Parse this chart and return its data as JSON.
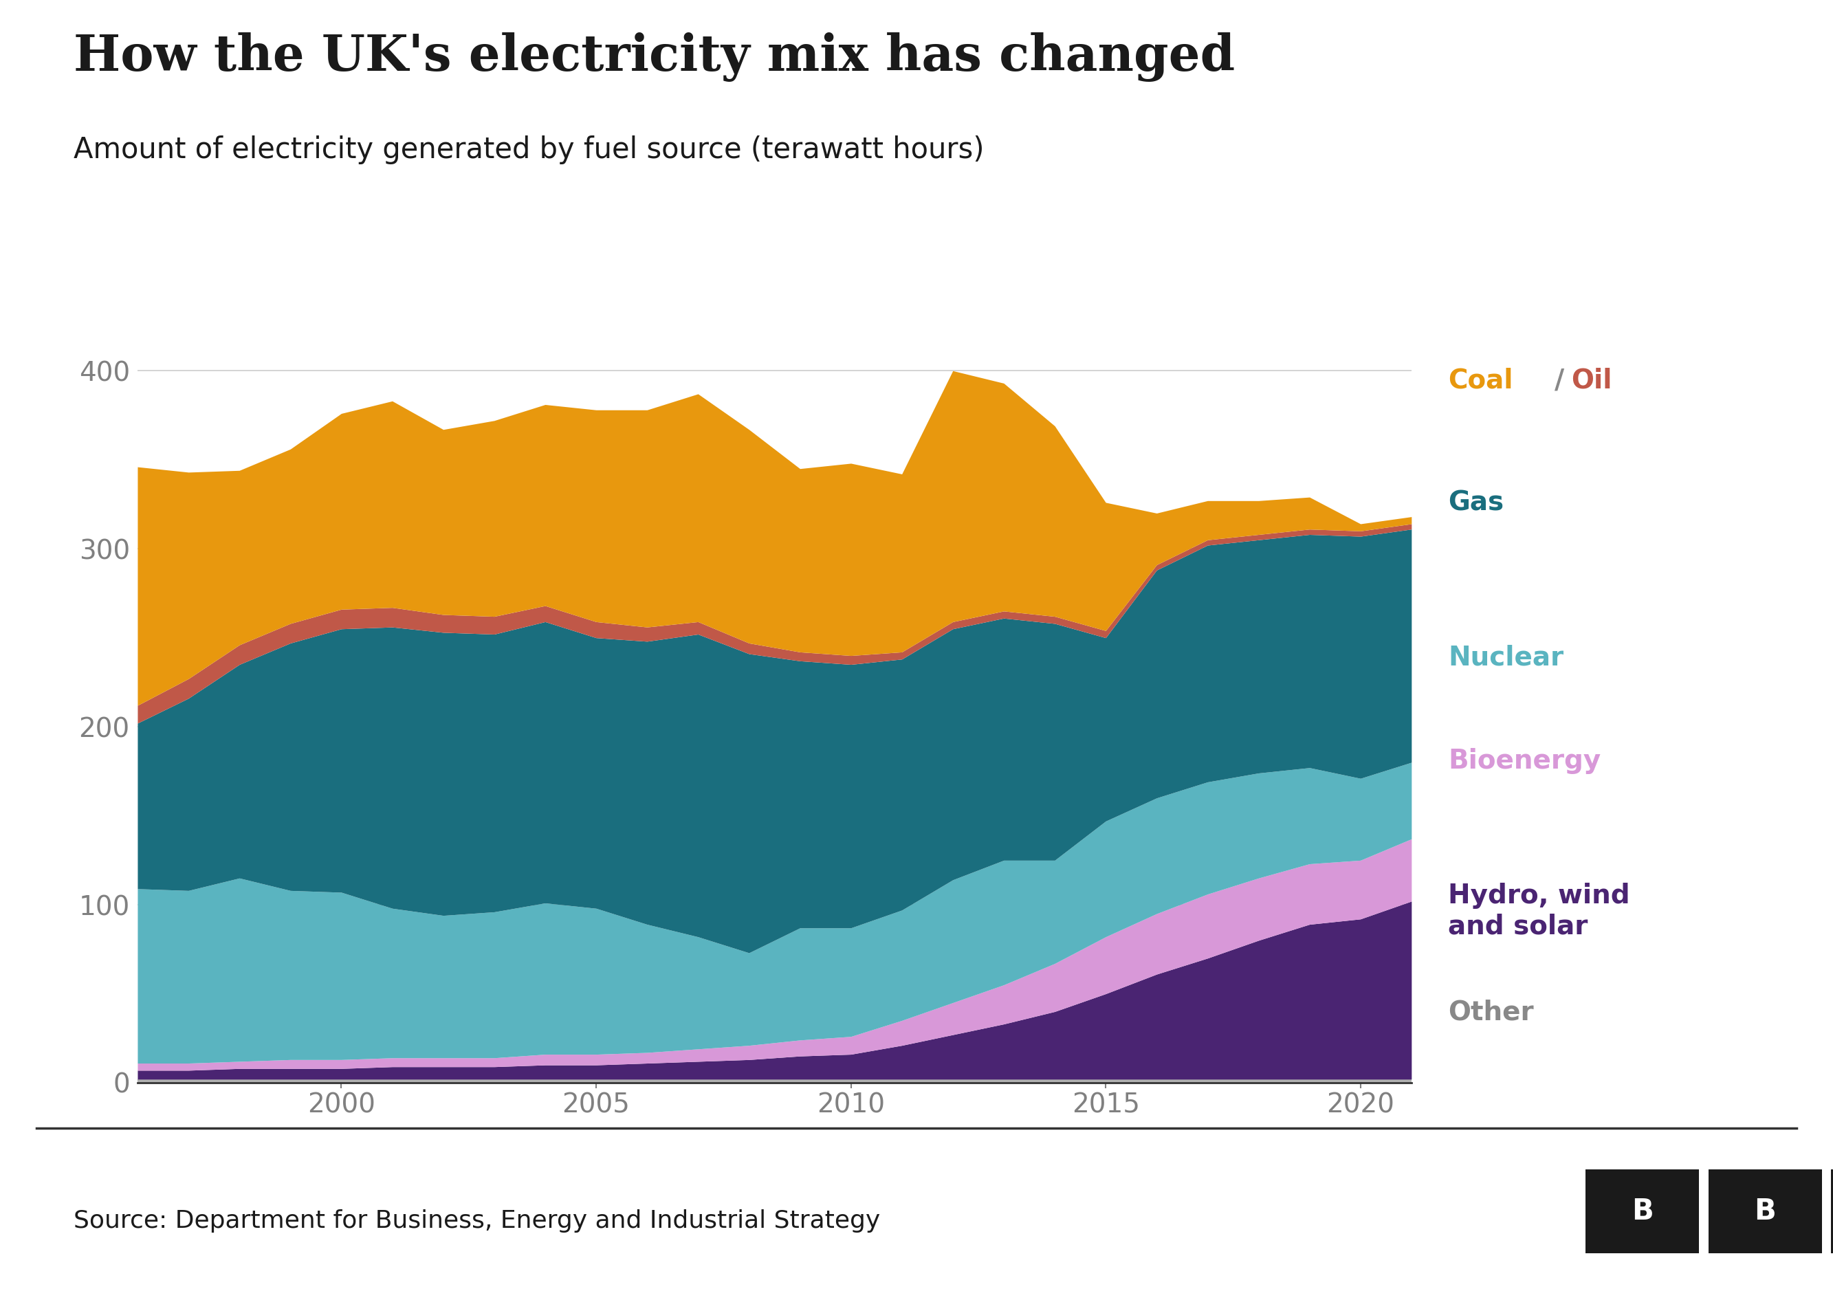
{
  "title": "How the UK's electricity mix has changed",
  "subtitle": "Amount of electricity generated by fuel source (terawatt hours)",
  "source": "Source: Department for Business, Energy and Industrial Strategy",
  "years": [
    1996,
    1997,
    1998,
    1999,
    2000,
    2001,
    2002,
    2003,
    2004,
    2005,
    2006,
    2007,
    2008,
    2009,
    2010,
    2011,
    2012,
    2013,
    2014,
    2015,
    2016,
    2017,
    2018,
    2019,
    2020,
    2021
  ],
  "other": [
    2,
    2,
    2,
    2,
    2,
    2,
    2,
    2,
    2,
    2,
    2,
    2,
    2,
    2,
    2,
    2,
    2,
    2,
    2,
    2,
    2,
    2,
    2,
    2,
    2,
    2
  ],
  "hydro_wind_solar": [
    5,
    5,
    6,
    6,
    6,
    7,
    7,
    7,
    8,
    8,
    9,
    10,
    11,
    13,
    14,
    19,
    25,
    31,
    38,
    48,
    59,
    68,
    78,
    87,
    90,
    100
  ],
  "bioenergy": [
    4,
    4,
    4,
    5,
    5,
    5,
    5,
    5,
    6,
    6,
    6,
    7,
    8,
    9,
    10,
    14,
    18,
    22,
    27,
    32,
    34,
    36,
    35,
    34,
    33,
    35
  ],
  "nuclear": [
    98,
    97,
    103,
    95,
    94,
    84,
    80,
    82,
    85,
    82,
    72,
    63,
    52,
    63,
    61,
    62,
    69,
    70,
    58,
    65,
    65,
    63,
    59,
    54,
    46,
    43
  ],
  "gas": [
    93,
    108,
    120,
    139,
    148,
    158,
    159,
    156,
    158,
    152,
    159,
    170,
    168,
    150,
    148,
    141,
    141,
    136,
    133,
    103,
    128,
    133,
    131,
    131,
    136,
    131
  ],
  "oil": [
    10,
    11,
    11,
    11,
    11,
    11,
    10,
    10,
    9,
    9,
    8,
    7,
    6,
    5,
    5,
    4,
    4,
    4,
    4,
    4,
    3,
    3,
    3,
    3,
    3,
    3
  ],
  "coal": [
    134,
    116,
    98,
    98,
    110,
    116,
    104,
    110,
    113,
    119,
    122,
    128,
    120,
    103,
    108,
    100,
    141,
    128,
    107,
    72,
    29,
    22,
    19,
    18,
    4,
    4
  ],
  "colors": {
    "other": "#b0b0b0",
    "hydro_wind_solar": "#4a2472",
    "bioenergy": "#d898d8",
    "nuclear": "#5ab4c0",
    "gas": "#1a6e7e",
    "oil": "#c05848",
    "coal": "#e8980e"
  },
  "legend_entries": [
    {
      "label_parts": [
        {
          "text": "Coal",
          "color": "#e8980e"
        },
        {
          "text": "/",
          "color": "#888888"
        },
        {
          "text": "Oil",
          "color": "#c05848"
        }
      ],
      "key": "coal_oil"
    },
    {
      "label_parts": [
        {
          "text": "Gas",
          "color": "#1a6e7e"
        }
      ],
      "key": "gas"
    },
    {
      "label_parts": [
        {
          "text": "Nuclear",
          "color": "#5ab4c0"
        }
      ],
      "key": "nuclear"
    },
    {
      "label_parts": [
        {
          "text": "Bioenergy",
          "color": "#d898d8"
        }
      ],
      "key": "bioenergy"
    },
    {
      "label_parts": [
        {
          "text": "Hydro, wind\nand solar",
          "color": "#4a2472"
        }
      ],
      "key": "hydro_wind_solar"
    },
    {
      "label_parts": [
        {
          "text": "Other",
          "color": "#888888"
        }
      ],
      "key": "other"
    }
  ],
  "ylim": [
    0,
    420
  ],
  "yticks": [
    0,
    100,
    200,
    300,
    400
  ],
  "xticks": [
    2000,
    2005,
    2010,
    2015,
    2020
  ],
  "background_color": "#ffffff",
  "title_fontsize": 52,
  "subtitle_fontsize": 30,
  "tick_fontsize": 28,
  "legend_fontsize": 28,
  "source_fontsize": 26
}
